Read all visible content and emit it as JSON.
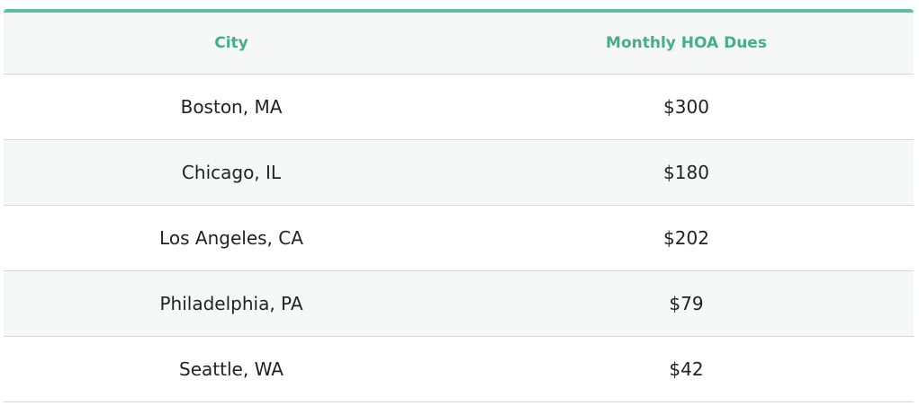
{
  "table": {
    "headers": [
      "City",
      "Monthly HOA Dues"
    ],
    "rows": [
      [
        "Boston, MA",
        "$300"
      ],
      [
        "Chicago, IL",
        "$180"
      ],
      [
        "Los Angeles, CA",
        "$202"
      ],
      [
        "Philadelphia, PA",
        "$79"
      ],
      [
        "Seattle, WA",
        "$42"
      ]
    ]
  },
  "colors": {
    "accent": "#5bbfa3",
    "header_text": "#45ad8c",
    "stripe": "#f6f8f7"
  }
}
